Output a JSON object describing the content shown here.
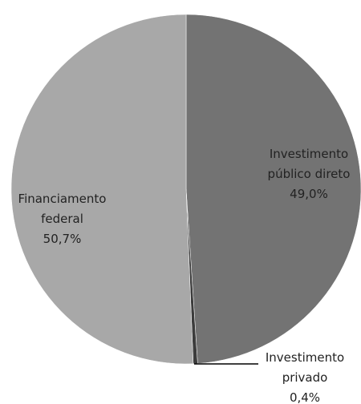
{
  "chart_data": {
    "type": "pie",
    "categories": [
      "Investimento público direto",
      "Investimento privado",
      "Financiamento federal"
    ],
    "values": [
      49.0,
      0.4,
      50.7
    ],
    "value_labels": [
      "49,0%",
      "0,4%",
      "50,7%"
    ],
    "colors": [
      "#737373",
      "#3c3c3c",
      "#a8a8a8"
    ]
  }
}
